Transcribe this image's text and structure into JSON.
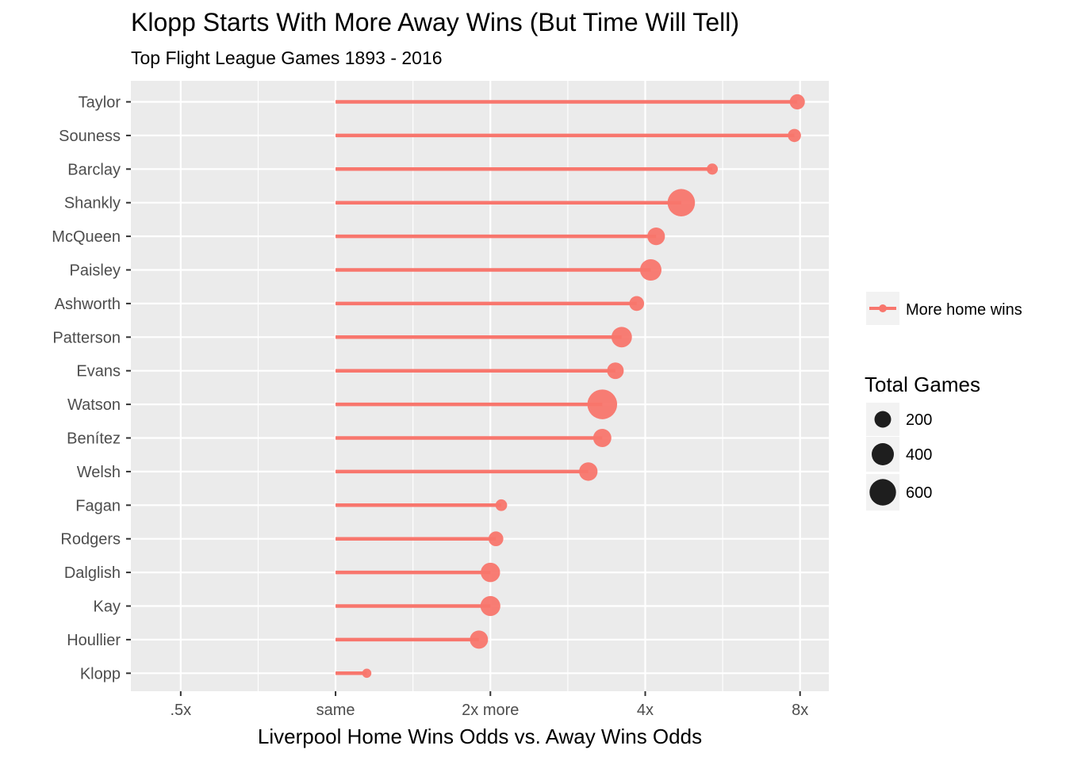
{
  "chart_data": {
    "type": "lollipop",
    "title": "Klopp Starts With More Away Wins (But Time Will Tell)",
    "subtitle": "Top Flight League Games 1893 - 2016",
    "xlabel": "Liverpool Home Wins Odds vs. Away Wins Odds",
    "x_scale": "log2",
    "x_ticks": [
      {
        "value": 0.5,
        "label": ".5x"
      },
      {
        "value": 1,
        "label": "same"
      },
      {
        "value": 2,
        "label": "2x more"
      },
      {
        "value": 4,
        "label": "4x"
      },
      {
        "value": 8,
        "label": "8x"
      }
    ],
    "xlim": [
      0.4,
      9.1
    ],
    "baseline": 1,
    "series_name": "More home wins",
    "series_color": "#F8766D",
    "size_legend": {
      "title": "Total Games",
      "entries": [
        {
          "value": 200,
          "label": "200"
        },
        {
          "value": 400,
          "label": "400"
        },
        {
          "value": 600,
          "label": "600"
        }
      ]
    },
    "points": [
      {
        "manager": "Taylor",
        "odds": 7.9,
        "games": 160
      },
      {
        "manager": "Souness",
        "odds": 7.8,
        "games": 110
      },
      {
        "manager": "Barclay",
        "odds": 5.4,
        "games": 70
      },
      {
        "manager": "Shankly",
        "odds": 4.7,
        "games": 650
      },
      {
        "manager": "McQueen",
        "odds": 4.2,
        "games": 230
      },
      {
        "manager": "Paisley",
        "odds": 4.1,
        "games": 370
      },
      {
        "manager": "Ashworth",
        "odds": 3.85,
        "games": 150
      },
      {
        "manager": "Patterson",
        "odds": 3.6,
        "games": 330
      },
      {
        "manager": "Evans",
        "odds": 3.5,
        "games": 200
      },
      {
        "manager": "Watson",
        "odds": 3.3,
        "games": 780
      },
      {
        "manager": "Benítez",
        "odds": 3.3,
        "games": 250
      },
      {
        "manager": "Welsh",
        "odds": 3.1,
        "games": 260
      },
      {
        "manager": "Fagan",
        "odds": 2.1,
        "games": 80
      },
      {
        "manager": "Rodgers",
        "odds": 2.05,
        "games": 150
      },
      {
        "manager": "Dalglish",
        "odds": 2.0,
        "games": 290
      },
      {
        "manager": "Kay",
        "odds": 2.0,
        "games": 310
      },
      {
        "manager": "Houllier",
        "odds": 1.9,
        "games": 250
      },
      {
        "manager": "Klopp",
        "odds": 1.15,
        "games": 40
      }
    ]
  }
}
